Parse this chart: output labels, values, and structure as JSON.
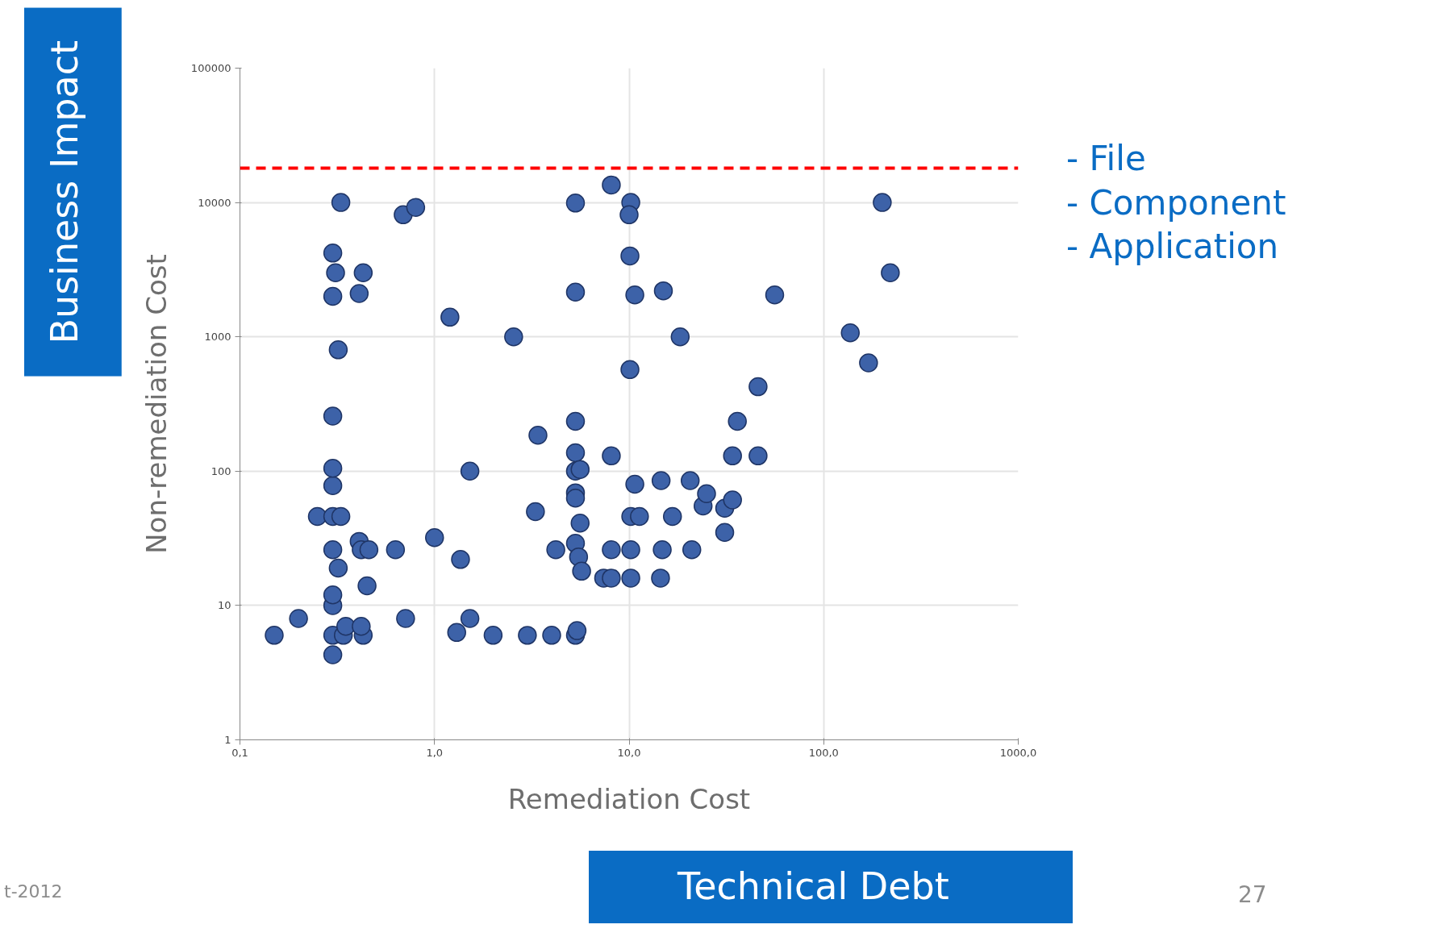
{
  "chart_data": {
    "type": "scatter",
    "xlabel": "Remediation Cost",
    "ylabel": "Non-remediation Cost",
    "log": "xy",
    "grid": true,
    "marker": "circle",
    "xlim": [
      0.1,
      1000
    ],
    "ylim": [
      1,
      100000
    ],
    "xticks": [
      {
        "value": 0.1,
        "label": "0,1"
      },
      {
        "value": 1,
        "label": "1,0"
      },
      {
        "value": 10,
        "label": "10,0"
      },
      {
        "value": 100,
        "label": "100,0"
      },
      {
        "value": 1000,
        "label": "1000,0"
      }
    ],
    "yticks": [
      1,
      10,
      100,
      1000,
      10000,
      100000
    ],
    "ref_lines": [
      {
        "axis": "y",
        "value": 18000,
        "color": "#ff0000",
        "line_style": "dashed"
      }
    ],
    "annotations": [
      "Business Impact",
      "Technical Debt",
      "- File\n- Component\n- Application",
      "t-2012",
      "27"
    ],
    "series": [
      {
        "color": "#3d62a8",
        "x": [
          0.15,
          0.2,
          0.3,
          0.3,
          0.34,
          0.35,
          0.43,
          0.42,
          0.3,
          0.3,
          0.32,
          0.3,
          0.41,
          0.42,
          0.46,
          0.45,
          0.25,
          0.3,
          0.33,
          0.3,
          0.3,
          0.3,
          0.32,
          0.3,
          0.41,
          0.31,
          0.43,
          0.3,
          0.33,
          0.69,
          0.8,
          0.63,
          0.71,
          1.0,
          1.2,
          1.36,
          1.3,
          1.52,
          1.52,
          2.0,
          2.55,
          3.0,
          4.0,
          3.3,
          3.4,
          4.2,
          5.3,
          5.4,
          5.3,
          5.3,
          5.3,
          5.3,
          5.3,
          5.6,
          5.3,
          5.3,
          5.6,
          5.3,
          5.5,
          5.7,
          7.4,
          8.1,
          8.1,
          8.1,
          8.1,
          10.2,
          10,
          10.1,
          10.7,
          10.1,
          10.7,
          10.2,
          11.3,
          10.2,
          10.2,
          14.6,
          15,
          16.7,
          14.8,
          14.5,
          18.3,
          20.6,
          24,
          25,
          21,
          31,
          34,
          31,
          34,
          36,
          46,
          46,
          56,
          137,
          170,
          200,
          220
        ],
        "values": [
          6,
          8,
          4.3,
          6,
          6,
          7,
          6,
          7,
          10,
          12,
          19,
          26,
          30,
          26,
          26,
          14,
          46,
          46,
          46,
          78,
          105,
          257,
          800,
          2000,
          2100,
          3000,
          3000,
          4200,
          10000,
          8100,
          9200,
          26,
          8,
          32,
          1400,
          22,
          6.3,
          8,
          100,
          6,
          1000,
          6,
          6,
          50,
          185,
          26,
          6,
          6.5,
          9900,
          2150,
          235,
          137,
          100,
          103,
          69,
          63,
          41,
          29,
          23,
          18,
          16,
          16,
          26,
          130,
          13500,
          10000,
          8100,
          4000,
          2050,
          570,
          80,
          46,
          46,
          26,
          16,
          85,
          2200,
          46,
          26,
          16,
          1000,
          85,
          55,
          68,
          26,
          53,
          61,
          35,
          130,
          235,
          130,
          425,
          2050,
          1070,
          640,
          10000,
          3000
        ]
      }
    ]
  }
}
